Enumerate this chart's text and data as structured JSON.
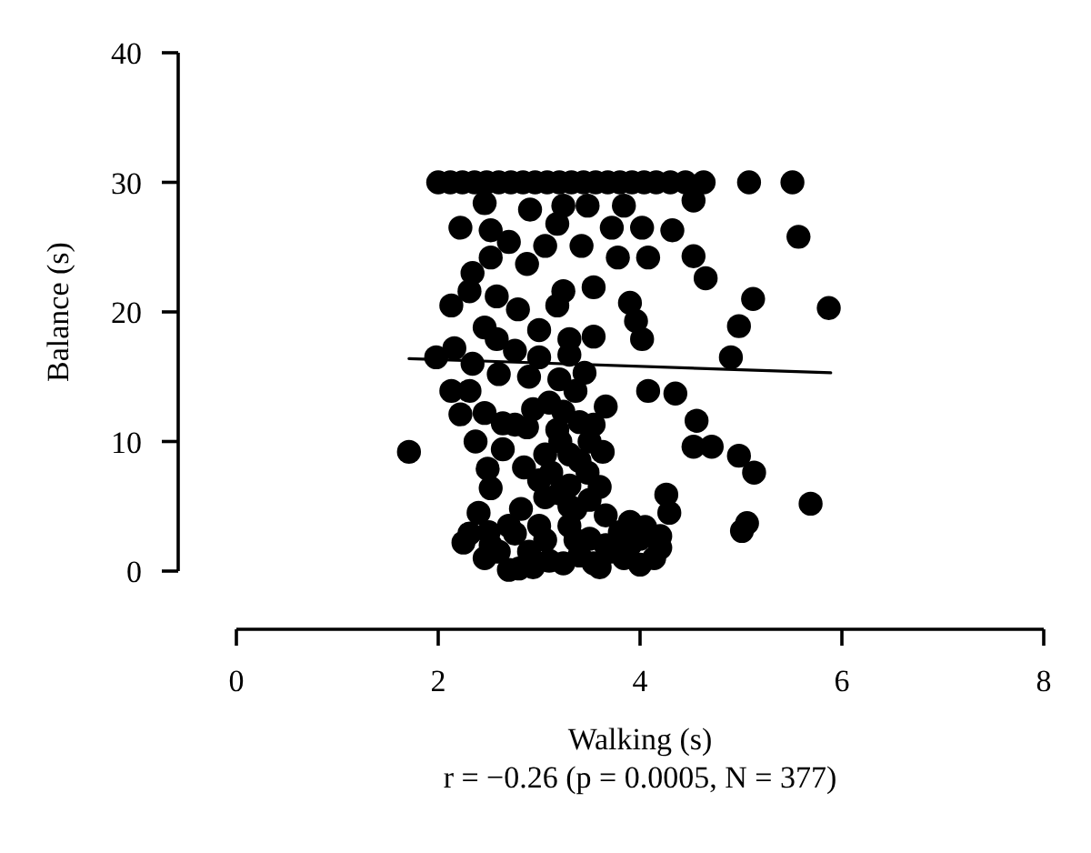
{
  "chart_data": {
    "type": "scatter",
    "xlabel": "Walking (s)",
    "ylabel": "Balance (s)",
    "annotations": [
      "r = −0.26 (p = 0.0005, N = 377)"
    ],
    "xlim": [
      0,
      8
    ],
    "ylim": [
      0,
      40
    ],
    "xticks": [
      0,
      2,
      4,
      6,
      8
    ],
    "yticks": [
      0,
      10,
      20,
      30,
      40
    ],
    "marker": "circle",
    "series": [
      {
        "type": "scatter",
        "color": "#000000",
        "x": [
          2.0,
          2.12,
          2.24,
          2.36,
          2.48,
          2.6,
          2.72,
          2.84,
          2.96,
          3.08,
          3.2,
          3.32,
          3.44,
          3.56,
          3.68,
          3.8,
          3.92,
          4.04,
          4.16,
          4.3,
          4.45,
          4.63,
          5.08,
          5.51,
          4.53,
          2.46,
          2.91,
          3.24,
          3.48,
          3.84,
          5.57,
          2.22,
          2.52,
          3.18,
          3.72,
          4.02,
          4.32,
          2.7,
          3.06,
          3.42,
          3.78,
          4.08,
          4.53,
          2.52,
          2.88,
          2.34,
          4.65,
          3.24,
          3.54,
          2.31,
          2.58,
          2.13,
          2.79,
          3.18,
          3.9,
          5.12,
          5.87,
          3.96,
          4.02,
          4.98,
          2.46,
          3.0,
          3.3,
          3.54,
          2.58,
          2.16,
          1.98,
          2.76,
          3.0,
          3.3,
          4.9,
          2.34,
          2.6,
          2.9,
          3.2,
          3.45,
          2.13,
          2.31,
          3.36,
          4.08,
          4.35,
          2.22,
          2.46,
          2.94,
          3.24,
          3.66,
          4.56,
          2.76,
          2.88,
          3.54,
          2.64,
          3.18,
          2.37,
          3.21,
          4.53,
          4.71,
          1.71,
          2.64,
          3.63,
          3.06,
          4.98,
          2.85,
          2.49,
          3.48,
          3.12,
          5.13,
          3.3,
          2.52,
          4.26,
          3.06,
          5.69,
          3.36,
          2.82,
          2.4,
          4.29,
          3.66,
          3.9,
          5.06,
          4.05,
          5.01,
          2.31,
          2.76,
          4.2,
          3.06,
          3.36,
          2.25,
          2.52,
          3.66,
          3.9,
          4.14,
          3.84,
          2.46,
          3.54,
          3.24,
          2.94,
          2.7,
          3.3,
          3.5,
          3.7,
          2.9,
          3.1,
          2.6,
          3.8,
          4.0,
          3.6,
          2.8,
          3.4,
          3.2,
          3.5,
          3.0,
          3.1,
          3.3,
          3.5,
          3.4,
          3.6,
          3.3,
          3.0,
          2.7,
          2.5,
          3.4,
          4.0,
          4.2
        ],
        "values": [
          30,
          30,
          30,
          30,
          30,
          30,
          30,
          30,
          30,
          30,
          30,
          30,
          30,
          30,
          30,
          30,
          30,
          30,
          30,
          30,
          30,
          30,
          30,
          30,
          28.6,
          28.4,
          27.9,
          28.2,
          28.2,
          28.2,
          25.8,
          26.5,
          26.3,
          26.8,
          26.5,
          26.5,
          26.3,
          25.4,
          25.1,
          25.1,
          24.2,
          24.2,
          24.3,
          24.2,
          23.7,
          23,
          22.6,
          21.6,
          21.9,
          21.6,
          21.2,
          20.5,
          20.2,
          20.5,
          20.7,
          21,
          20.3,
          19.3,
          17.9,
          18.9,
          18.8,
          18.6,
          17.9,
          18.1,
          17.9,
          17.2,
          16.5,
          17,
          16.5,
          16.7,
          16.5,
          16,
          15.2,
          15,
          14.8,
          15.3,
          13.9,
          13.9,
          13.9,
          13.9,
          13.7,
          12.1,
          12.2,
          12.5,
          12.3,
          12.7,
          11.6,
          11.3,
          11.1,
          11.3,
          11.4,
          10.9,
          10,
          10,
          9.6,
          9.6,
          9.2,
          9.4,
          9.2,
          9,
          8.9,
          8,
          7.9,
          7.6,
          7.6,
          7.6,
          6.6,
          6.4,
          5.9,
          5.7,
          5.2,
          4.8,
          4.8,
          4.5,
          4.5,
          4.3,
          3.8,
          3.7,
          3.4,
          3.1,
          2.9,
          2.9,
          2.7,
          2.4,
          2.4,
          2.2,
          2,
          2,
          2,
          1,
          1,
          1,
          0.6,
          0.6,
          0.3,
          0.1,
          3.5,
          2.5,
          1.5,
          1.5,
          0.8,
          1.5,
          3,
          0.5,
          0.3,
          0.2,
          8.5,
          6,
          5.5,
          7,
          13,
          9,
          10,
          11.5,
          6.5,
          5,
          3.5,
          3.5,
          3,
          1.2,
          2.5,
          1.8
        ]
      },
      {
        "type": "line",
        "color": "#000000",
        "x": [
          1.71,
          5.89
        ],
        "values": [
          16.4,
          15.3
        ],
        "marker": "none",
        "line_style": "solid"
      }
    ]
  }
}
